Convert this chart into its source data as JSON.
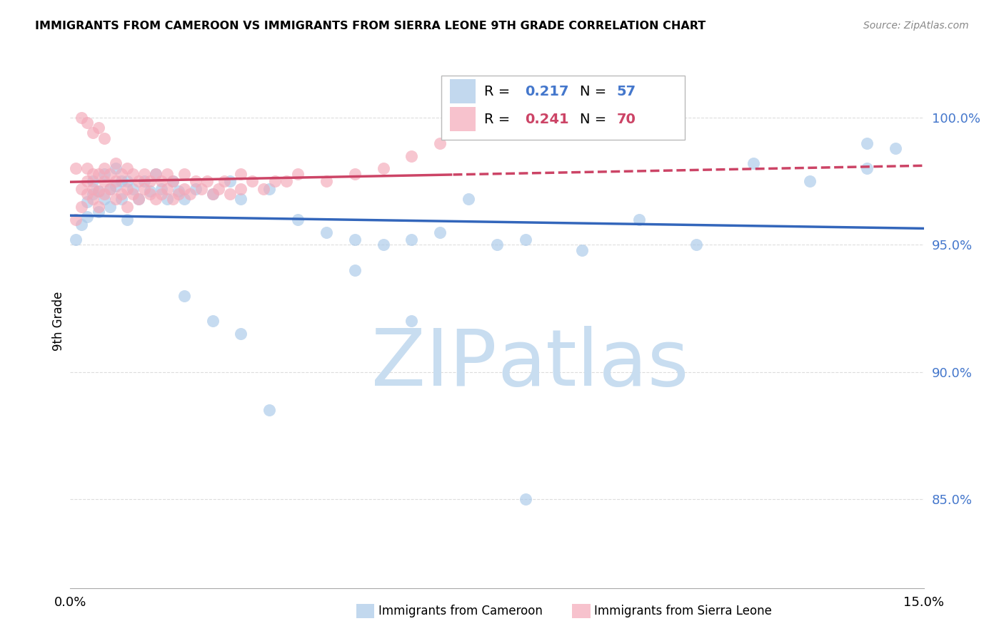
{
  "title": "IMMIGRANTS FROM CAMEROON VS IMMIGRANTS FROM SIERRA LEONE 9TH GRADE CORRELATION CHART",
  "source": "Source: ZipAtlas.com",
  "ylabel": "9th Grade",
  "yaxis_values": [
    0.85,
    0.9,
    0.95,
    1.0
  ],
  "xmin": 0.0,
  "xmax": 0.15,
  "ymin": 0.815,
  "ymax": 1.025,
  "legend_r_cam": "0.217",
  "legend_n_cam": "57",
  "legend_r_sle": "0.241",
  "legend_n_sle": "70",
  "color_cameroon": "#a8c8e8",
  "color_sierra": "#f4a8b8",
  "line_color_cameroon": "#3366bb",
  "line_color_sierra": "#cc4466",
  "grid_color": "#dddddd",
  "background_color": "#ffffff",
  "watermark_zip": "ZIP",
  "watermark_atlas": "atlas",
  "watermark_color_zip": "#c8ddf0",
  "watermark_color_atlas": "#c8ddf0",
  "cam_x": [
    0.001,
    0.002,
    0.003,
    0.003,
    0.004,
    0.004,
    0.005,
    0.005,
    0.006,
    0.006,
    0.007,
    0.007,
    0.008,
    0.008,
    0.009,
    0.009,
    0.01,
    0.01,
    0.011,
    0.012,
    0.013,
    0.014,
    0.015,
    0.016,
    0.017,
    0.018,
    0.019,
    0.02,
    0.022,
    0.025,
    0.028,
    0.03,
    0.035,
    0.04,
    0.045,
    0.05,
    0.055,
    0.06,
    0.065,
    0.07,
    0.075,
    0.08,
    0.09,
    0.1,
    0.11,
    0.12,
    0.13,
    0.14,
    0.02,
    0.025,
    0.03,
    0.035,
    0.05,
    0.06,
    0.08,
    0.14,
    0.145
  ],
  "cam_y": [
    0.952,
    0.958,
    0.961,
    0.967,
    0.97,
    0.975,
    0.963,
    0.971,
    0.968,
    0.978,
    0.965,
    0.972,
    0.973,
    0.98,
    0.975,
    0.968,
    0.96,
    0.975,
    0.972,
    0.968,
    0.975,
    0.971,
    0.978,
    0.972,
    0.968,
    0.975,
    0.971,
    0.968,
    0.972,
    0.97,
    0.975,
    0.968,
    0.972,
    0.96,
    0.955,
    0.952,
    0.95,
    0.952,
    0.955,
    0.968,
    0.95,
    0.952,
    0.948,
    0.96,
    0.95,
    0.982,
    0.975,
    0.98,
    0.93,
    0.92,
    0.915,
    0.885,
    0.94,
    0.92,
    0.85,
    0.99,
    0.988
  ],
  "sle_x": [
    0.001,
    0.001,
    0.002,
    0.002,
    0.003,
    0.003,
    0.003,
    0.004,
    0.004,
    0.004,
    0.005,
    0.005,
    0.005,
    0.006,
    0.006,
    0.006,
    0.007,
    0.007,
    0.008,
    0.008,
    0.008,
    0.009,
    0.009,
    0.01,
    0.01,
    0.01,
    0.011,
    0.011,
    0.012,
    0.012,
    0.013,
    0.013,
    0.014,
    0.014,
    0.015,
    0.015,
    0.016,
    0.016,
    0.017,
    0.017,
    0.018,
    0.018,
    0.019,
    0.02,
    0.02,
    0.021,
    0.022,
    0.023,
    0.024,
    0.025,
    0.026,
    0.027,
    0.028,
    0.03,
    0.03,
    0.032,
    0.034,
    0.036,
    0.038,
    0.04,
    0.045,
    0.05,
    0.055,
    0.06,
    0.065,
    0.002,
    0.003,
    0.004,
    0.005,
    0.006
  ],
  "sle_y": [
    0.96,
    0.98,
    0.965,
    0.972,
    0.97,
    0.975,
    0.98,
    0.968,
    0.972,
    0.978,
    0.965,
    0.971,
    0.978,
    0.97,
    0.975,
    0.98,
    0.972,
    0.978,
    0.968,
    0.975,
    0.982,
    0.97,
    0.978,
    0.965,
    0.972,
    0.98,
    0.97,
    0.978,
    0.968,
    0.975,
    0.972,
    0.978,
    0.97,
    0.975,
    0.968,
    0.978,
    0.97,
    0.975,
    0.972,
    0.978,
    0.968,
    0.975,
    0.97,
    0.972,
    0.978,
    0.97,
    0.975,
    0.972,
    0.975,
    0.97,
    0.972,
    0.975,
    0.97,
    0.972,
    0.978,
    0.975,
    0.972,
    0.975,
    0.975,
    0.978,
    0.975,
    0.978,
    0.98,
    0.985,
    0.99,
    1.0,
    0.998,
    0.994,
    0.996,
    0.992
  ]
}
